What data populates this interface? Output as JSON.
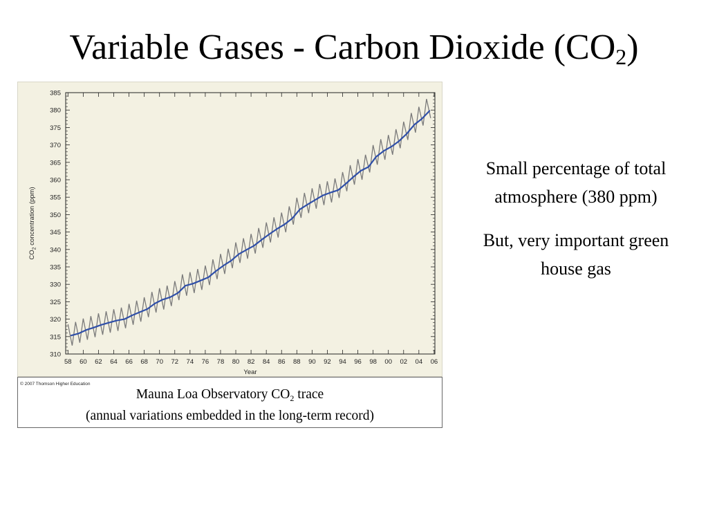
{
  "title": {
    "main": "Variable Gases - Carbon Dioxide (CO",
    "subscript": "2",
    "close": ")"
  },
  "copyright": "© 2007 Thomson Higher Education",
  "caption": {
    "line1_prefix": "Mauna Loa Observatory CO",
    "line1_subscript": "2",
    "line1_suffix": " trace",
    "line2": "(annual variations embedded in the long-term record)"
  },
  "bullets": [
    "Small percentage of total atmosphere (380 ppm)",
    "But, very important green house gas"
  ],
  "colors": {
    "plot_background": "#f3f1e2",
    "monthly_trace": "#7a7a7a",
    "annual_mean": "#2f4fa8",
    "axis": "#222222"
  },
  "chart_data": {
    "type": "line",
    "title": "",
    "xlabel": "Year",
    "ylabel_prefix": "CO",
    "ylabel_subscript": "2",
    "ylabel_suffix": " concentration (ppm)",
    "xlim": [
      1957.7,
      2006.1
    ],
    "ylim": [
      310,
      385
    ],
    "x_ticks": [
      1958,
      1960,
      1962,
      1964,
      1966,
      1968,
      1970,
      1972,
      1974,
      1976,
      1978,
      1980,
      1982,
      1984,
      1986,
      1988,
      1990,
      1992,
      1994,
      1996,
      1998,
      2000,
      2002,
      2004,
      2006
    ],
    "x_tick_labels": [
      "58",
      "60",
      "62",
      "64",
      "66",
      "68",
      "70",
      "72",
      "74",
      "76",
      "78",
      "80",
      "82",
      "84",
      "86",
      "88",
      "90",
      "92",
      "94",
      "96",
      "98",
      "00",
      "02",
      "04",
      "06"
    ],
    "y_ticks": [
      310,
      315,
      320,
      325,
      330,
      335,
      340,
      345,
      350,
      355,
      360,
      365,
      370,
      375,
      380,
      385
    ],
    "y_tick_labels": [
      "310",
      "315",
      "320",
      "325",
      "330",
      "335",
      "340",
      "345",
      "350",
      "355",
      "360",
      "365",
      "370",
      "375",
      "380",
      "385"
    ],
    "grid": false,
    "series": [
      {
        "kind": "seasonal",
        "x": [
          1958,
          1959,
          1960,
          1961,
          1962,
          1963,
          1964,
          1965,
          1966,
          1967,
          1968,
          1969,
          1970,
          1971,
          1972,
          1973,
          1974,
          1975,
          1976,
          1977,
          1978,
          1979,
          1980,
          1981,
          1982,
          1983,
          1984,
          1985,
          1986,
          1987,
          1988,
          1989,
          1990,
          1991,
          1992,
          1993,
          1994,
          1995,
          1996,
          1997,
          1998,
          1999,
          2000,
          2001,
          2002,
          2003,
          2004,
          2005
        ],
        "values": [
          315.3,
          315.9,
          316.9,
          317.6,
          318.4,
          319.0,
          319.6,
          320.0,
          321.1,
          322.0,
          322.9,
          324.5,
          325.6,
          326.3,
          327.5,
          329.6,
          330.2,
          331.1,
          332.0,
          333.8,
          335.4,
          336.8,
          338.7,
          339.9,
          341.1,
          342.8,
          344.4,
          345.9,
          347.2,
          348.9,
          351.5,
          352.9,
          354.2,
          355.5,
          356.3,
          357.0,
          358.8,
          360.8,
          362.6,
          363.7,
          366.6,
          368.3,
          369.5,
          371.1,
          373.2,
          375.8,
          377.5,
          379.8
        ],
        "amplitude": 3.2
      },
      {
        "kind": "annual_mean",
        "x": [
          1958,
          1959,
          1960,
          1961,
          1962,
          1963,
          1964,
          1965,
          1966,
          1967,
          1968,
          1969,
          1970,
          1971,
          1972,
          1973,
          1974,
          1975,
          1976,
          1977,
          1978,
          1979,
          1980,
          1981,
          1982,
          1983,
          1984,
          1985,
          1986,
          1987,
          1988,
          1989,
          1990,
          1991,
          1992,
          1993,
          1994,
          1995,
          1996,
          1997,
          1998,
          1999,
          2000,
          2001,
          2002,
          2003,
          2004,
          2005
        ],
        "values": [
          315.3,
          315.9,
          316.9,
          317.6,
          318.4,
          319.0,
          319.6,
          320.0,
          321.1,
          322.0,
          322.9,
          324.5,
          325.6,
          326.3,
          327.5,
          329.6,
          330.2,
          331.1,
          332.0,
          333.8,
          335.4,
          336.8,
          338.7,
          339.9,
          341.1,
          342.8,
          344.4,
          345.9,
          347.2,
          348.9,
          351.5,
          352.9,
          354.2,
          355.5,
          356.3,
          357.0,
          358.8,
          360.8,
          362.6,
          363.7,
          366.6,
          368.3,
          369.5,
          371.1,
          373.2,
          375.8,
          377.5,
          379.8
        ]
      }
    ]
  }
}
